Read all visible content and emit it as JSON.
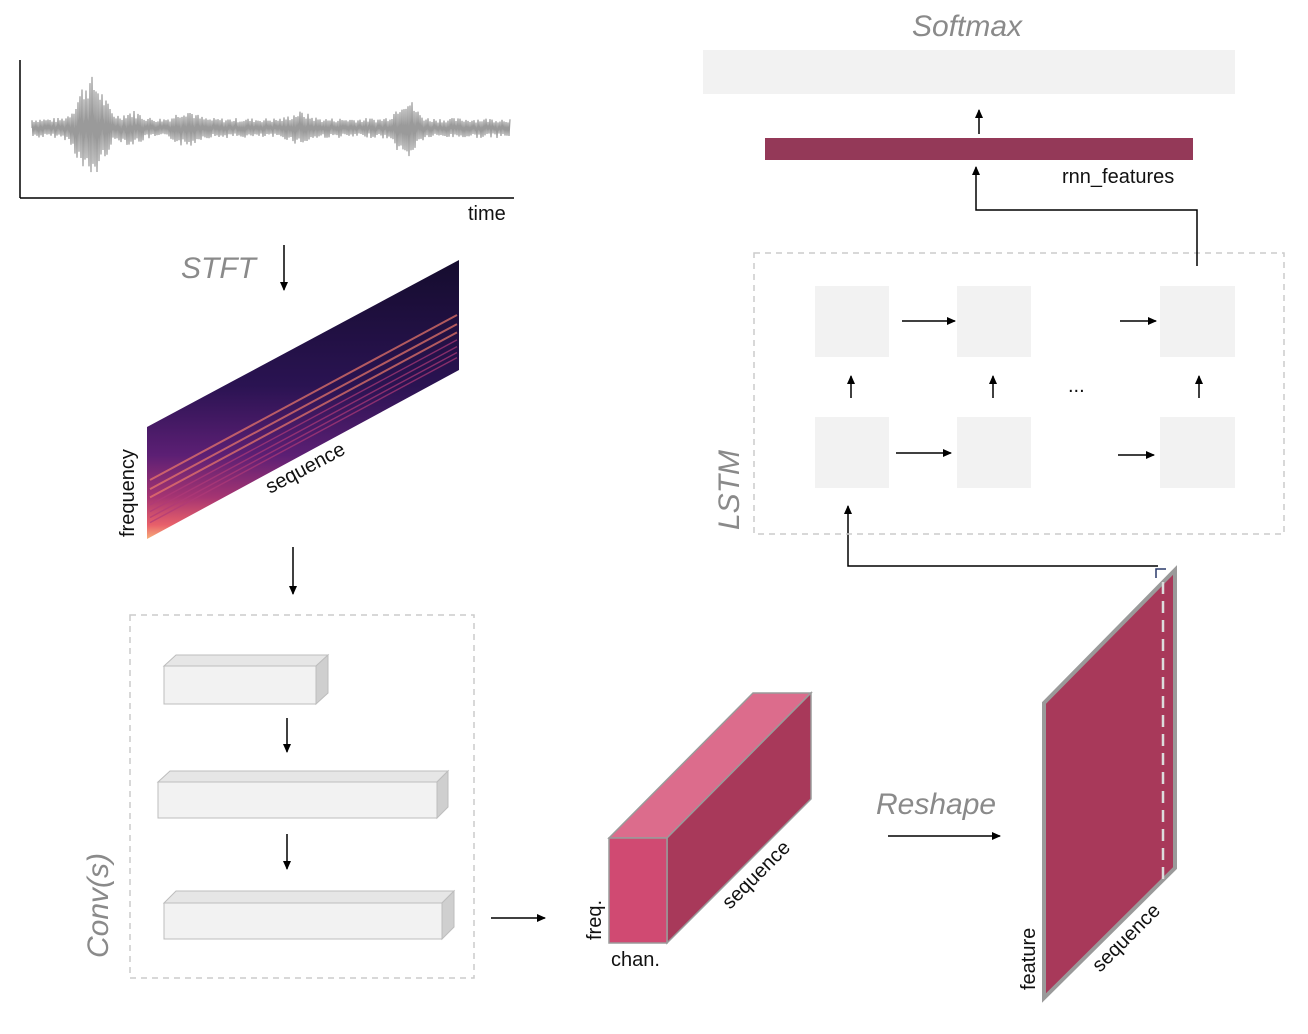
{
  "labels": {
    "time": "time",
    "frequency": "frequency",
    "sequence": "sequence",
    "freq": "freq.",
    "chan": "chan.",
    "feature": "feature",
    "rnn_features": "rnn_features",
    "ellipsis": "..."
  },
  "stages": {
    "stft": "STFT",
    "conv": "Conv(s)",
    "reshape": "Reshape",
    "lstm": "LSTM",
    "softmax": "Softmax"
  },
  "colors": {
    "waveform": "#9a9a9a",
    "stage_text": "#8a8a8a",
    "tensor_front": "#d04a72",
    "tensor_top": "#dc6c8c",
    "tensor_side": "#a8395a",
    "feature_bar": "#943958",
    "cell_fill": "#f2f2f2",
    "dashed_border": "#cccccc"
  }
}
